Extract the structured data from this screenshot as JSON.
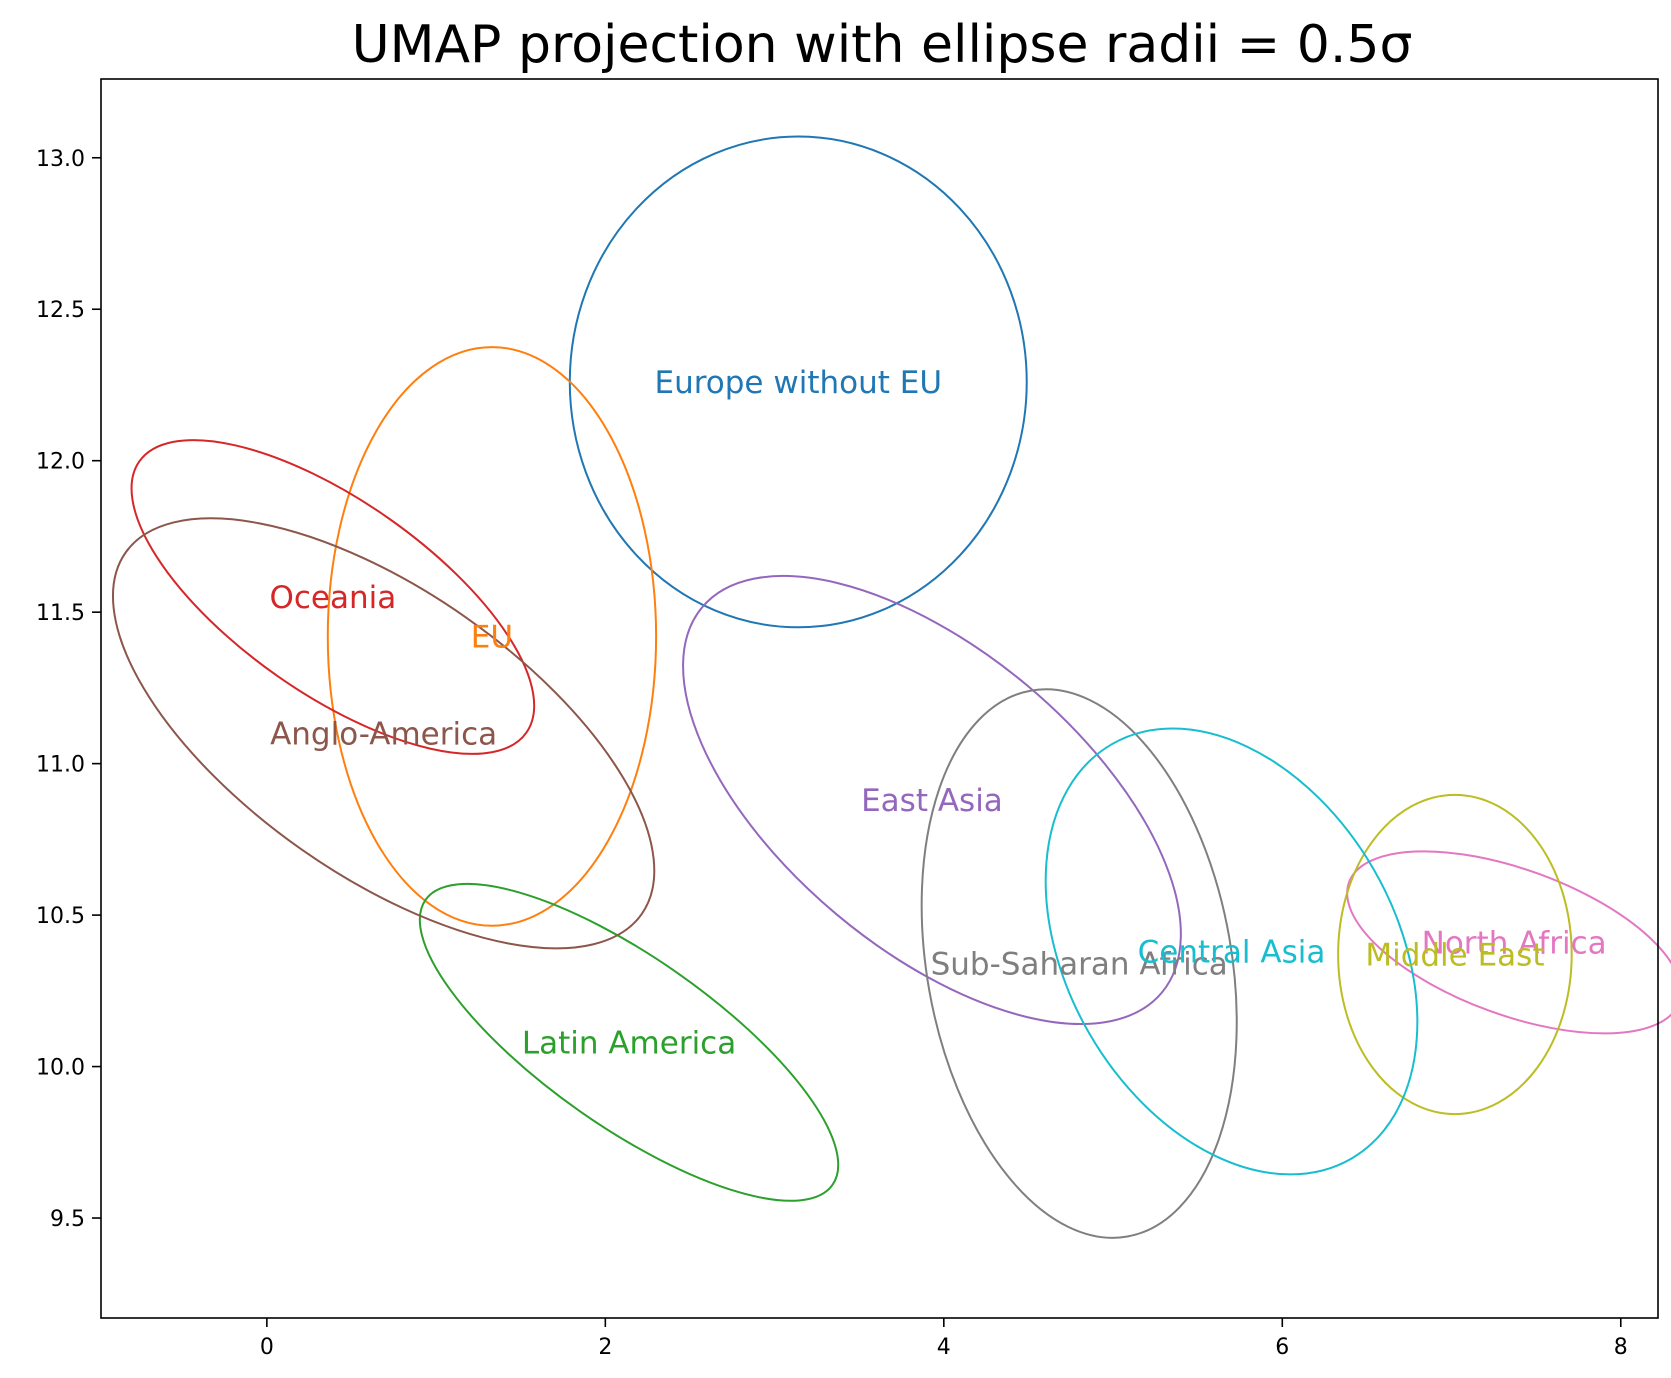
{
  "chart_data": {
    "type": "scatter",
    "title": "UMAP projection with ellipse radii = 0.5σ",
    "xlabel": "",
    "ylabel": "",
    "xlim": [
      -0.98,
      8.22
    ],
    "ylim": [
      9.17,
      13.26
    ],
    "xticks": [
      0,
      2,
      4,
      6,
      8
    ],
    "xtick_labels": [
      "0",
      "2",
      "4",
      "6",
      "8"
    ],
    "yticks": [
      9.5,
      10.0,
      10.5,
      11.0,
      11.5,
      12.0,
      12.5,
      13.0
    ],
    "ytick_labels": [
      "9.5",
      "10.0",
      "10.5",
      "11.0",
      "11.5",
      "12.0",
      "12.5",
      "13.0"
    ],
    "grid": false,
    "legend": "none",
    "series": [
      {
        "name": "Europe without EU",
        "color": "#1f77b4",
        "center": [
          3.14,
          12.26
        ],
        "semi_x": 1.35,
        "semi_y": 0.81,
        "angle_deg": 0
      },
      {
        "name": "EU",
        "color": "#ff7f0e",
        "center": [
          1.33,
          11.42
        ],
        "semi_x": 0.97,
        "semi_y": 0.955,
        "angle_deg": 0
      },
      {
        "name": "Latin America",
        "color": "#2ca02c",
        "center": [
          2.14,
          10.08
        ],
        "semi_x": 0.5,
        "semi_y": 0.82,
        "angle_deg": -55
      },
      {
        "name": "Oceania",
        "color": "#d62728",
        "center": [
          0.39,
          11.55
        ],
        "semi_x": 0.57,
        "semi_y": 0.78,
        "angle_deg": -55
      },
      {
        "name": "East Asia",
        "color": "#9467bd",
        "center": [
          3.93,
          10.88
        ],
        "semi_x": 0.88,
        "semi_y": 0.99,
        "angle_deg": -50
      },
      {
        "name": "Anglo-America",
        "color": "#8c564b",
        "center": [
          0.69,
          11.1
        ],
        "semi_x": 0.84,
        "semi_y": 1.04,
        "angle_deg": -55
      },
      {
        "name": "North Africa",
        "color": "#e377c2",
        "center": [
          7.37,
          10.41
        ],
        "semi_x": 0.43,
        "semi_y": 0.58,
        "angle_deg": -70
      },
      {
        "name": "Sub-Saharan Africa",
        "color": "#7f7f7f",
        "center": [
          4.8,
          10.34
        ],
        "semi_x": 0.9,
        "semi_y": 0.915,
        "angle_deg": -10
      },
      {
        "name": "Middle East",
        "color": "#bcbd22",
        "center": [
          7.02,
          10.37
        ],
        "semi_x": 0.69,
        "semi_y": 0.527,
        "angle_deg": 0
      },
      {
        "name": "Central Asia",
        "color": "#17becf",
        "center": [
          5.7,
          10.38
        ],
        "semi_x": 0.97,
        "semi_y": 0.79,
        "angle_deg": -30
      }
    ]
  }
}
